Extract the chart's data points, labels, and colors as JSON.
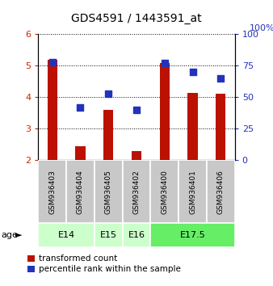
{
  "title": "GDS4591 / 1443591_at",
  "samples": [
    "GSM936403",
    "GSM936404",
    "GSM936405",
    "GSM936402",
    "GSM936400",
    "GSM936401",
    "GSM936406"
  ],
  "red_values": [
    5.2,
    2.45,
    3.6,
    2.3,
    5.1,
    4.15,
    4.1
  ],
  "blue_values": [
    78,
    42,
    53,
    40,
    77,
    70,
    65
  ],
  "ylim_left": [
    2,
    6
  ],
  "ylim_right": [
    0,
    100
  ],
  "yticks_left": [
    2,
    3,
    4,
    5,
    6
  ],
  "yticks_right": [
    0,
    25,
    50,
    75,
    100
  ],
  "age_groups": [
    {
      "label": "E14",
      "start": 0,
      "end": 2,
      "color": "#ccffcc"
    },
    {
      "label": "E15",
      "start": 2,
      "end": 3,
      "color": "#ccffcc"
    },
    {
      "label": "E16",
      "start": 3,
      "end": 4,
      "color": "#ccffcc"
    },
    {
      "label": "E17.5",
      "start": 4,
      "end": 7,
      "color": "#66ee66"
    }
  ],
  "red_color": "#bb1100",
  "blue_color": "#2233bb",
  "bar_width": 0.35,
  "dot_size": 40,
  "legend_labels": [
    "transformed count",
    "percentile rank within the sample"
  ],
  "yticklabel_color_left": "#cc2200",
  "yticklabel_color_right": "#2233bb",
  "sample_box_color": "#c8c8c8",
  "fig_width": 3.38,
  "fig_height": 3.54,
  "dpi": 100
}
